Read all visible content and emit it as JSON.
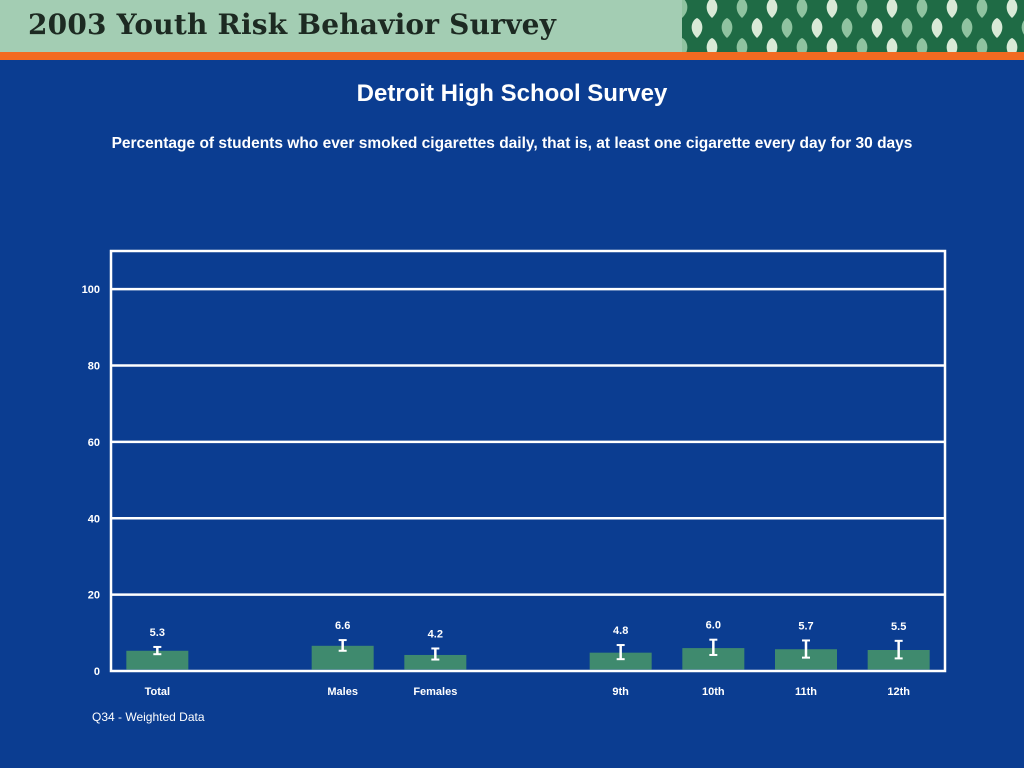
{
  "header": {
    "banner_title": "2003 Youth Risk Behavior Survey"
  },
  "colors": {
    "background": "#0b3d91",
    "banner": "#a3cdb3",
    "banner_pattern": "#1f6b45",
    "accent_rule": "#f26a21",
    "bar": "#3f8a6e",
    "error_bar": "#ffffff",
    "gridline": "#ffffff"
  },
  "footnote": "Q34 - Weighted Data",
  "chart_data": {
    "type": "bar",
    "title": "Detroit High School Survey",
    "subtitle": "Percentage of students who ever smoked cigarettes daily, that is, at least one cigarette every day for 30 days",
    "categories": [
      "Total",
      "Males",
      "Females",
      "9th",
      "10th",
      "11th",
      "12th"
    ],
    "category_groups": [
      [
        "Total"
      ],
      [
        "Males",
        "Females"
      ],
      [
        "9th",
        "10th",
        "11th",
        "12th"
      ]
    ],
    "values": [
      5.3,
      6.6,
      4.2,
      4.8,
      6.0,
      5.7,
      5.5
    ],
    "value_labels": [
      "5.3",
      "6.6",
      "4.2",
      "4.8",
      "6.0",
      "5.7",
      "5.5"
    ],
    "error_low": [
      4.4,
      5.3,
      3.0,
      3.1,
      4.2,
      3.5,
      3.3
    ],
    "error_high": [
      6.3,
      8.1,
      5.9,
      6.8,
      8.2,
      8.0,
      7.9
    ],
    "yticks": [
      0,
      20,
      40,
      60,
      80,
      100
    ],
    "ylim": [
      0,
      110
    ],
    "grid": true,
    "legend": "none"
  }
}
